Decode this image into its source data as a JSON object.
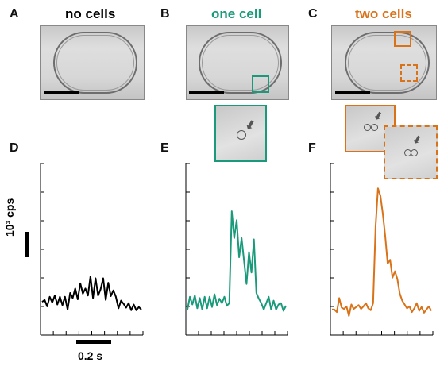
{
  "panels_top": [
    {
      "letter": "A",
      "title": "no cells",
      "color": "#000000"
    },
    {
      "letter": "B",
      "title": "one cell",
      "color": "#1a9a7a"
    },
    {
      "letter": "C",
      "title": "two cells",
      "color": "#d9731a"
    }
  ],
  "panels_bottom": [
    {
      "letter": "D"
    },
    {
      "letter": "E"
    },
    {
      "letter": "F"
    }
  ],
  "ylabel_html": "10³ cps",
  "time_scale_label": "0.2 s",
  "chart_data": [
    {
      "type": "line",
      "panel": "D",
      "color": "#000000",
      "values": [
        0.42,
        0.45,
        0.35,
        0.5,
        0.41,
        0.52,
        0.38,
        0.5,
        0.37,
        0.5,
        0.3,
        0.56,
        0.48,
        0.63,
        0.46,
        0.71,
        0.55,
        0.63,
        0.52,
        0.82,
        0.48,
        0.79,
        0.52,
        0.62,
        0.79,
        0.45,
        0.72,
        0.51,
        0.6,
        0.5,
        0.32,
        0.44,
        0.39,
        0.33,
        0.4,
        0.29,
        0.38,
        0.29,
        0.34,
        0.3
      ]
    },
    {
      "type": "line",
      "panel": "E",
      "color": "#1a9a7a",
      "values": [
        0.3,
        0.5,
        0.38,
        0.52,
        0.32,
        0.48,
        0.3,
        0.5,
        0.32,
        0.5,
        0.34,
        0.54,
        0.37,
        0.47,
        0.4,
        0.5,
        0.36,
        0.4,
        1.84,
        1.42,
        1.7,
        1.12,
        1.42,
        1.06,
        0.7,
        1.2,
        0.88,
        1.4,
        0.56,
        0.47,
        0.4,
        0.3,
        0.4,
        0.5,
        0.3,
        0.44,
        0.3,
        0.38,
        0.4,
        0.28,
        0.36
      ]
    },
    {
      "type": "line",
      "panel": "F",
      "color": "#d9731a",
      "values": [
        0.3,
        0.3,
        0.26,
        0.48,
        0.33,
        0.31,
        0.35,
        0.2,
        0.38,
        0.31,
        0.34,
        0.37,
        0.31,
        0.35,
        0.4,
        0.32,
        0.29,
        0.4,
        1.6,
        2.2,
        2.08,
        1.8,
        1.44,
        1.02,
        1.08,
        0.8,
        0.9,
        0.78,
        0.55,
        0.44,
        0.38,
        0.32,
        0.35,
        0.26,
        0.32,
        0.4,
        0.28,
        0.34,
        0.25,
        0.3,
        0.35,
        0.28
      ]
    }
  ]
}
